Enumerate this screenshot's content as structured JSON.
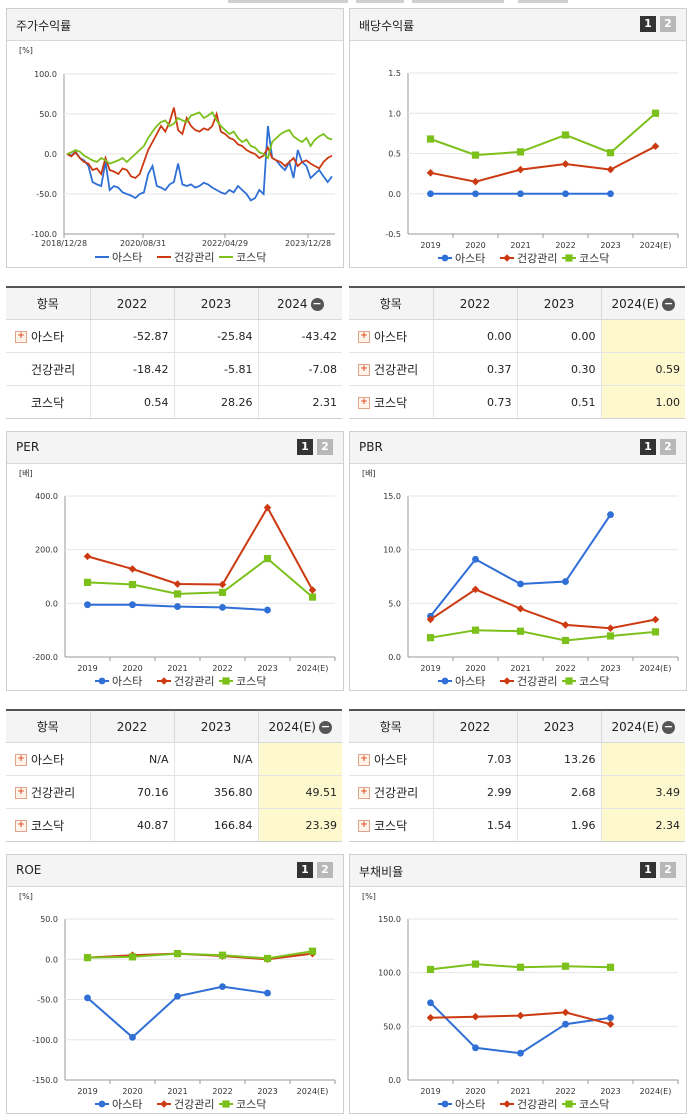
{
  "colors": {
    "asta": "#2f6fd6",
    "health": "#cc3a12",
    "kosdaq": "#7cc01c"
  },
  "legend": [
    "아스타",
    "건강관리",
    "코스닥"
  ],
  "page_buttons": [
    "1",
    "2"
  ],
  "panels": {
    "price": {
      "title": "주가수익률"
    },
    "dividend": {
      "title": "배당수익률"
    },
    "per": {
      "title": "PER"
    },
    "pbr": {
      "title": "PBR"
    },
    "roe": {
      "title": "ROE"
    },
    "debt": {
      "title": "부채비율"
    }
  },
  "tables": {
    "price": {
      "headers": [
        "항목",
        "2022",
        "2023",
        "2024"
      ],
      "rows": [
        {
          "name": "아스타",
          "plus": true,
          "values": [
            "-52.87",
            "-25.84",
            "-43.42"
          ]
        },
        {
          "name": "건강관리",
          "plus": false,
          "values": [
            "-18.42",
            "-5.81",
            "-7.08"
          ]
        },
        {
          "name": "코스닥",
          "plus": false,
          "values": [
            "0.54",
            "28.26",
            "2.31"
          ]
        }
      ]
    },
    "dividend": {
      "headers": [
        "항목",
        "2022",
        "2023",
        "2024(E)"
      ],
      "rows": [
        {
          "name": "아스타",
          "plus": true,
          "values": [
            "0.00",
            "0.00",
            ""
          ]
        },
        {
          "name": "건강관리",
          "plus": true,
          "values": [
            "0.37",
            "0.30",
            "0.59"
          ]
        },
        {
          "name": "코스닥",
          "plus": true,
          "values": [
            "0.73",
            "0.51",
            "1.00"
          ]
        }
      ]
    },
    "per": {
      "headers": [
        "항목",
        "2022",
        "2023",
        "2024(E)"
      ],
      "rows": [
        {
          "name": "아스타",
          "plus": true,
          "values": [
            "N/A",
            "N/A",
            ""
          ]
        },
        {
          "name": "건강관리",
          "plus": true,
          "values": [
            "70.16",
            "356.80",
            "49.51"
          ]
        },
        {
          "name": "코스닥",
          "plus": true,
          "values": [
            "40.87",
            "166.84",
            "23.39"
          ]
        }
      ]
    },
    "pbr": {
      "headers": [
        "항목",
        "2022",
        "2023",
        "2024(E)"
      ],
      "rows": [
        {
          "name": "아스타",
          "plus": true,
          "values": [
            "7.03",
            "13.26",
            ""
          ]
        },
        {
          "name": "건강관리",
          "plus": true,
          "values": [
            "2.99",
            "2.68",
            "3.49"
          ]
        },
        {
          "name": "코스닥",
          "plus": true,
          "values": [
            "1.54",
            "1.96",
            "2.34"
          ]
        }
      ]
    }
  },
  "chart_data": [
    {
      "id": "price",
      "type": "line",
      "title": "주가수익률",
      "unit": "[%]",
      "ylim": [
        -100,
        100
      ],
      "yticks": [
        "100.0",
        "50.0",
        "0.0",
        "-50.0",
        "-100.0"
      ],
      "xtick_labels": [
        "2018/12/28",
        "2020/08/31",
        "2022/04/29",
        "2023/12/28"
      ],
      "series": [
        {
          "name": "아스타",
          "values": [
            0,
            -2,
            3,
            -5,
            -8,
            -15,
            -35,
            -38,
            -40,
            -10,
            -45,
            -40,
            -42,
            -48,
            -50,
            -52,
            -55,
            -50,
            -48,
            -25,
            -15,
            -40,
            -42,
            -45,
            -38,
            -35,
            -12,
            -38,
            -40,
            -38,
            -42,
            -40,
            -36,
            -38,
            -42,
            -45,
            -48,
            -50,
            -45,
            -48,
            -40,
            -45,
            -50,
            -58,
            -55,
            -45,
            -50,
            35,
            -5,
            -8,
            -15,
            -20,
            -10,
            -30,
            5,
            -10,
            -15,
            -30,
            -25,
            -20,
            -28,
            -35,
            -28
          ]
        },
        {
          "name": "건강관리",
          "values": [
            0,
            -3,
            2,
            -5,
            -10,
            -12,
            -20,
            -18,
            -25,
            -5,
            -20,
            -22,
            -25,
            -18,
            -20,
            -28,
            -30,
            -25,
            -10,
            5,
            15,
            25,
            35,
            28,
            40,
            58,
            30,
            25,
            45,
            35,
            30,
            28,
            32,
            30,
            35,
            50,
            28,
            25,
            20,
            18,
            12,
            10,
            5,
            2,
            0,
            -5,
            -2,
            8,
            -5,
            -8,
            -10,
            -15,
            -10,
            -5,
            -15,
            -10,
            -8,
            -12,
            -15,
            -18,
            -10,
            -5,
            -2
          ]
        },
        {
          "name": "코스닥",
          "values": [
            0,
            2,
            5,
            3,
            -2,
            -5,
            -8,
            -10,
            -5,
            -8,
            -12,
            -10,
            -8,
            -5,
            -10,
            -5,
            0,
            5,
            10,
            20,
            28,
            35,
            40,
            42,
            35,
            38,
            45,
            42,
            40,
            48,
            50,
            52,
            45,
            48,
            52,
            42,
            35,
            30,
            25,
            28,
            20,
            15,
            18,
            10,
            8,
            2,
            0,
            -5,
            15,
            20,
            25,
            28,
            30,
            22,
            18,
            15,
            20,
            10,
            18,
            22,
            25,
            20,
            18
          ]
        }
      ]
    },
    {
      "id": "dividend",
      "type": "line",
      "title": "배당수익률",
      "ylim": [
        -0.5,
        1.5
      ],
      "yticks": [
        "1.5",
        "1.0",
        "0.5",
        "0.0",
        "-0.5"
      ],
      "categories": [
        "2019",
        "2020",
        "2021",
        "2022",
        "2023",
        "2024(E)"
      ],
      "series": [
        {
          "name": "아스타",
          "values": [
            0.0,
            0.0,
            0.0,
            0.0,
            0.0,
            null
          ]
        },
        {
          "name": "건강관리",
          "values": [
            0.26,
            0.15,
            0.3,
            0.37,
            0.3,
            0.59
          ]
        },
        {
          "name": "코스닥",
          "values": [
            0.68,
            0.48,
            0.52,
            0.73,
            0.51,
            1.0
          ]
        }
      ]
    },
    {
      "id": "per",
      "type": "line",
      "title": "PER",
      "unit": "[배]",
      "ylim": [
        -200,
        400
      ],
      "yticks": [
        "400.0",
        "200.0",
        "0.0",
        "-200.0"
      ],
      "categories": [
        "2019",
        "2020",
        "2021",
        "2022",
        "2023",
        "2024(E)"
      ],
      "series": [
        {
          "name": "아스타",
          "values": [
            -5,
            -5,
            -12,
            -15,
            -25,
            null
          ]
        },
        {
          "name": "건강관리",
          "values": [
            175,
            128,
            72,
            70.16,
            356.8,
            49.51
          ]
        },
        {
          "name": "코스닥",
          "values": [
            78,
            70,
            35,
            40.87,
            166.84,
            23.39
          ]
        }
      ]
    },
    {
      "id": "pbr",
      "type": "line",
      "title": "PBR",
      "unit": "[배]",
      "ylim": [
        0,
        15
      ],
      "yticks": [
        "15.0",
        "10.0",
        "5.0",
        "0.0"
      ],
      "categories": [
        "2019",
        "2020",
        "2021",
        "2022",
        "2023",
        "2024(E)"
      ],
      "series": [
        {
          "name": "아스타",
          "values": [
            3.8,
            9.1,
            6.8,
            7.03,
            13.26,
            null
          ]
        },
        {
          "name": "건강관리",
          "values": [
            3.5,
            6.3,
            4.5,
            2.99,
            2.68,
            3.49
          ]
        },
        {
          "name": "코스닥",
          "values": [
            1.8,
            2.5,
            2.4,
            1.54,
            1.96,
            2.34
          ]
        }
      ]
    },
    {
      "id": "roe",
      "type": "line",
      "title": "ROE",
      "unit": "[%]",
      "ylim": [
        -150,
        50
      ],
      "yticks": [
        "50.0",
        "0.0",
        "-50.0",
        "-100.0",
        "-150.0"
      ],
      "categories": [
        "2019",
        "2020",
        "2021",
        "2022",
        "2023",
        "2024(E)"
      ],
      "series": [
        {
          "name": "아스타",
          "values": [
            -48,
            -97,
            -46,
            -34,
            -42,
            null
          ]
        },
        {
          "name": "건강관리",
          "values": [
            2,
            5,
            7,
            4,
            0,
            7
          ]
        },
        {
          "name": "코스닥",
          "values": [
            2,
            3,
            7,
            5,
            1,
            10
          ]
        }
      ]
    },
    {
      "id": "debt",
      "type": "line",
      "title": "부채비율",
      "unit": "[%]",
      "ylim": [
        0,
        150
      ],
      "yticks": [
        "150.0",
        "100.0",
        "50.0",
        "0.0"
      ],
      "categories": [
        "2019",
        "2020",
        "2021",
        "2022",
        "2023",
        "2024(E)"
      ],
      "series": [
        {
          "name": "아스타",
          "values": [
            72,
            30,
            25,
            52,
            58,
            null
          ]
        },
        {
          "name": "건강관리",
          "values": [
            58,
            59,
            60,
            63,
            52,
            null
          ]
        },
        {
          "name": "코스닥",
          "values": [
            103,
            108,
            105,
            106,
            105,
            null
          ]
        }
      ]
    }
  ]
}
